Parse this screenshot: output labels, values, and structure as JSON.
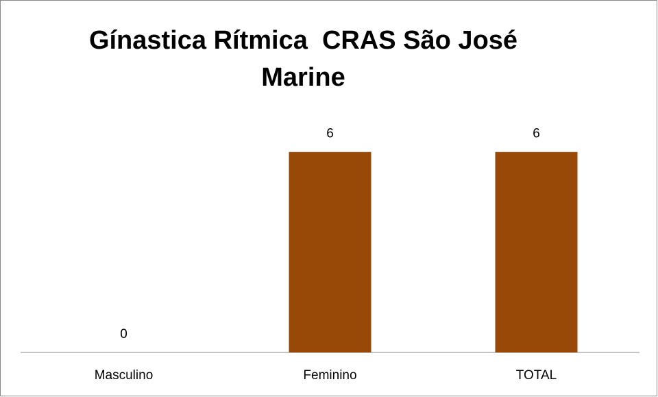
{
  "chart_data": {
    "type": "bar",
    "title": "Gínastica Rítmica  CRAS São José Marine",
    "categories": [
      "Masculino",
      "Feminino",
      "TOTAL"
    ],
    "values": [
      0,
      6,
      6
    ],
    "color": "#984807",
    "ylim": [
      0,
      7
    ]
  }
}
